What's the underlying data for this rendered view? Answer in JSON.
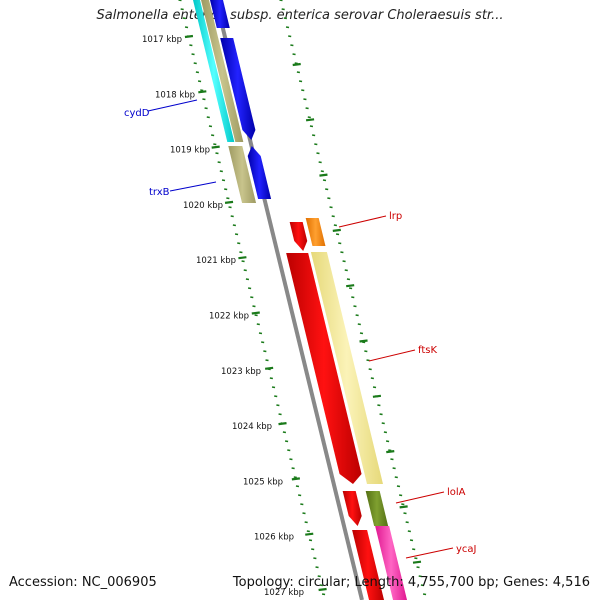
{
  "title": "Salmonella enterica subsp. enterica serovar Choleraesuis str...",
  "footer": {
    "accession": "Accession: NC_006905",
    "topology": "Topology: circular; Length: 4,755,700 bp; Genes: 4,516"
  },
  "ruler": {
    "unit": "kbp",
    "ticks": [
      "1017 kbp",
      "1018 kbp",
      "1019 kbp",
      "1020 kbp",
      "1021 kbp",
      "1022 kbp",
      "1023 kbp",
      "1024 kbp",
      "1025 kbp",
      "1026 kbp",
      "1027 kbp"
    ]
  },
  "genes": [
    {
      "name": "cydD",
      "color": "#0000cc"
    },
    {
      "name": "trxB",
      "color": "#0000cc"
    },
    {
      "name": "lrp",
      "color": "#cc0000"
    },
    {
      "name": "ftsK",
      "color": "#cc0000"
    },
    {
      "name": "lolA",
      "color": "#cc0000"
    },
    {
      "name": "ycaJ",
      "color": "#cc0000"
    }
  ],
  "colors": {
    "tick": "#1a7a1a",
    "backbone": "#808080",
    "forward_cds": "#0000ee",
    "reverse_cds": "#ee0000",
    "khaki": "#b8b47a",
    "cyan": "#00e5e5",
    "orange": "#ff8800",
    "pale_yellow": "#f2e89a",
    "olive": "#6b8e23",
    "magenta": "#ff33aa"
  }
}
